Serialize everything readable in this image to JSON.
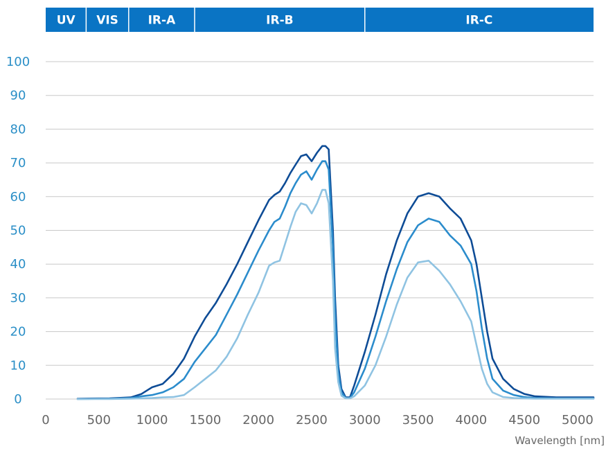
{
  "chart_data": {
    "type": "line",
    "title": "",
    "xlabel": "Wavelength [nm]",
    "ylabel": "",
    "xlim": [
      0,
      5150
    ],
    "ylim": [
      0,
      100
    ],
    "xticks": [
      0,
      500,
      1000,
      1500,
      2000,
      2500,
      3000,
      3500,
      4000,
      4500,
      5000
    ],
    "yticks": [
      0,
      10,
      20,
      30,
      40,
      50,
      60,
      70,
      80,
      90,
      100
    ],
    "grid": true,
    "bands": [
      {
        "label": "UV",
        "start": 0,
        "end": 380
      },
      {
        "label": "VIS",
        "start": 380,
        "end": 780
      },
      {
        "label": "IR-A",
        "start": 780,
        "end": 1400
      },
      {
        "label": "IR-B",
        "start": 1400,
        "end": 3000
      },
      {
        "label": "IR-C",
        "start": 3000,
        "end": 5150
      }
    ],
    "colors": {
      "band": "#0a74c4",
      "series": [
        "#0e4c96",
        "#2b8ccc",
        "#8fc3e2"
      ]
    },
    "series": [
      {
        "x": [
          300,
          600,
          800,
          900,
          950,
          1000,
          1100,
          1200,
          1300,
          1400,
          1500,
          1600,
          1700,
          1800,
          1900,
          2000,
          2100,
          2150,
          2200,
          2250,
          2300,
          2350,
          2400,
          2450,
          2500,
          2550,
          2600,
          2630,
          2660,
          2700,
          2720,
          2750,
          2780,
          2820,
          2860,
          2900,
          3000,
          3100,
          3200,
          3300,
          3400,
          3500,
          3600,
          3700,
          3800,
          3900,
          4000,
          4050,
          4100,
          4150,
          4200,
          4300,
          4400,
          4500,
          4600,
          4800,
          5000,
          5150
        ],
        "y": [
          0.1,
          0.2,
          0.5,
          1.5,
          2.5,
          3.5,
          4.5,
          7.5,
          12,
          18.5,
          24,
          28.5,
          34,
          40,
          46.5,
          53,
          59,
          60.5,
          61.5,
          64,
          67,
          69.5,
          72,
          72.5,
          70.5,
          73,
          75,
          75,
          74,
          50,
          30,
          10,
          3,
          0.5,
          0.5,
          4,
          14,
          25,
          37,
          47,
          55,
          60,
          61,
          60,
          56.5,
          53.5,
          47,
          40,
          30,
          20,
          12,
          6,
          3,
          1.5,
          0.8,
          0.5,
          0.5,
          0.5
        ]
      },
      {
        "x": [
          300,
          600,
          800,
          900,
          1000,
          1100,
          1200,
          1300,
          1400,
          1500,
          1600,
          1700,
          1800,
          1900,
          2000,
          2100,
          2150,
          2200,
          2250,
          2300,
          2350,
          2400,
          2450,
          2500,
          2550,
          2600,
          2630,
          2660,
          2700,
          2720,
          2750,
          2780,
          2820,
          2860,
          2900,
          3000,
          3100,
          3200,
          3300,
          3400,
          3500,
          3600,
          3700,
          3800,
          3900,
          4000,
          4050,
          4100,
          4150,
          4200,
          4300,
          4400,
          4500,
          4600,
          4800,
          5000,
          5150
        ],
        "y": [
          0,
          0.1,
          0.3,
          0.8,
          1.2,
          2,
          3.5,
          6,
          11,
          15,
          19,
          25,
          31,
          37.5,
          44,
          50,
          52.5,
          53.5,
          57,
          61,
          64,
          66.5,
          67.5,
          65,
          68,
          70.5,
          70.5,
          68,
          45,
          25,
          8,
          2,
          0.3,
          0.3,
          2,
          9,
          18.5,
          29,
          38.5,
          46.5,
          51.5,
          53.5,
          52.5,
          48.5,
          45.5,
          40,
          32,
          21,
          12,
          6,
          2.5,
          1.2,
          0.6,
          0.3,
          0.2,
          0.2,
          0.2
        ]
      },
      {
        "x": [
          300,
          600,
          800,
          900,
          1000,
          1100,
          1200,
          1300,
          1400,
          1500,
          1600,
          1700,
          1800,
          1900,
          2000,
          2100,
          2150,
          2200,
          2250,
          2300,
          2350,
          2400,
          2450,
          2500,
          2550,
          2600,
          2630,
          2660,
          2700,
          2720,
          2750,
          2780,
          2820,
          2860,
          2900,
          3000,
          3100,
          3200,
          3300,
          3400,
          3500,
          3600,
          3700,
          3800,
          3900,
          4000,
          4050,
          4100,
          4150,
          4200,
          4300,
          4400,
          4500,
          4600,
          4800,
          5000,
          5150
        ],
        "y": [
          0,
          0,
          0.1,
          0.2,
          0.3,
          0.5,
          0.6,
          1.2,
          3.5,
          6,
          8.5,
          12.5,
          18,
          25,
          31.5,
          39.5,
          40.5,
          41,
          46,
          51,
          55.5,
          58,
          57.5,
          55,
          58,
          62,
          62,
          58,
          35,
          15,
          5,
          1,
          0.2,
          0.2,
          0.8,
          4,
          10,
          18.5,
          28,
          36,
          40.5,
          41,
          38,
          34,
          29,
          23,
          16,
          9,
          4.5,
          2,
          0.6,
          0.3,
          0.2,
          0.1,
          0.1,
          0.1,
          0.1
        ]
      }
    ]
  }
}
